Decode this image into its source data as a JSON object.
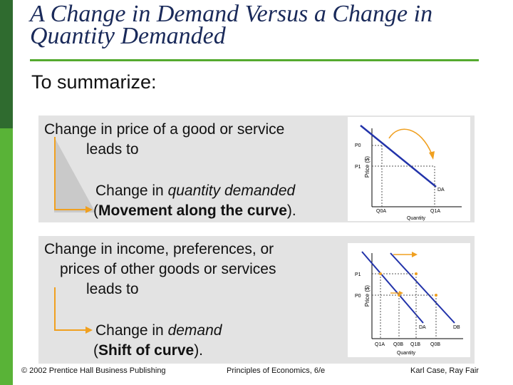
{
  "title": "A Change in Demand Versus a Change in Quantity Demanded",
  "subtitle": "To summarize:",
  "panel1": {
    "line1": "Change in price of a good or service",
    "line2": "leads to",
    "result_line1_pre": "Change in ",
    "result_line1_emph": "quantity demanded",
    "result_line2_open": "(",
    "result_line2_bold": "Movement along the curve",
    "result_line2_close": ").",
    "graph": {
      "ylabel": "Price ($)",
      "xlabel": "Quantity",
      "p0": "P0",
      "p1": "P1",
      "q0": "Q0A",
      "q1": "Q1A",
      "curve": "DA"
    }
  },
  "panel2": {
    "line1": "Change in income, preferences, or",
    "line2": "prices of other goods or services",
    "line3": "leads to",
    "result_line1_pre": "Change in ",
    "result_line1_emph": "demand",
    "result_line2_open": "(",
    "result_line2_bold": "Shift of curve",
    "result_line2_close": ").",
    "graph": {
      "ylabel": "Price ($)",
      "xlabel": "Quantity",
      "p0": "P0",
      "p1": "P1",
      "q_labels": [
        "Q1A",
        "Q0B",
        "Q1B",
        "Q0B"
      ],
      "curve_a": "DA",
      "curve_b": "DB"
    }
  },
  "footer": {
    "left": "© 2002 Prentice Hall Business Publishing",
    "center": "Principles of Economics, 6/e",
    "right": "Karl Case, Ray Fair"
  },
  "colors": {
    "accent_green": "#55aa2f",
    "curve_blue": "#2233aa",
    "arrow_orange": "#f0a020"
  }
}
